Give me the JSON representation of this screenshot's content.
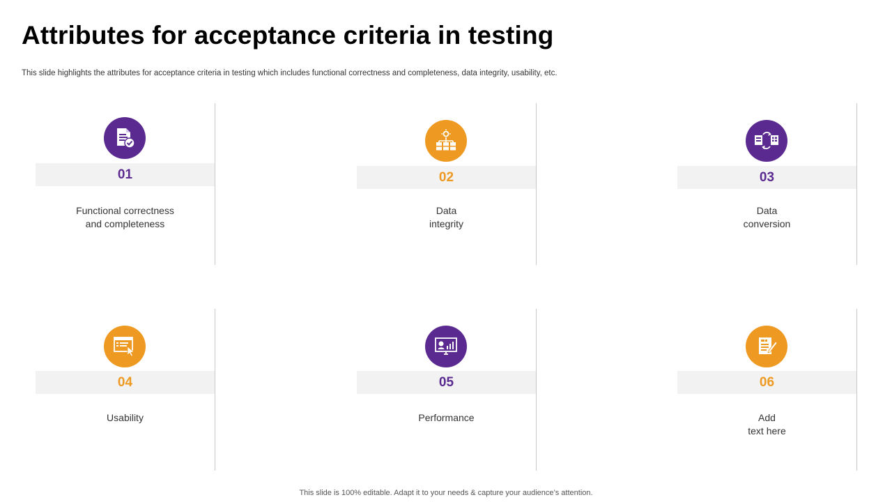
{
  "slide": {
    "title": "Attributes for acceptance criteria in testing",
    "subtitle": "This slide highlights the attributes for acceptance criteria in testing which includes functional correctness and completeness, data integrity, usability, etc.",
    "footer": "This slide is 100% editable. Adapt it to your needs & capture your audience’s attention."
  },
  "colors": {
    "purple": "#5b2a91",
    "orange": "#ee9a22",
    "band": "#f2f2f2"
  },
  "items": [
    {
      "number": "01",
      "line1": "Functional correctness",
      "line2": "and completeness",
      "icon": "document-check-icon",
      "color": "purple"
    },
    {
      "number": "02",
      "line1": "Data",
      "line2": "integrity",
      "icon": "server-network-icon",
      "color": "orange"
    },
    {
      "number": "03",
      "line1": "Data",
      "line2": "conversion",
      "icon": "data-conversion-icon",
      "color": "purple"
    },
    {
      "number": "04",
      "line1": "Usability",
      "line2": "",
      "icon": "browser-click-icon",
      "color": "orange"
    },
    {
      "number": "05",
      "line1": "Performance",
      "line2": "",
      "icon": "monitor-dashboard-icon",
      "color": "purple"
    },
    {
      "number": "06",
      "line1": "Add",
      "line2": "text here",
      "icon": "notepad-pencil-icon",
      "color": "orange"
    }
  ]
}
